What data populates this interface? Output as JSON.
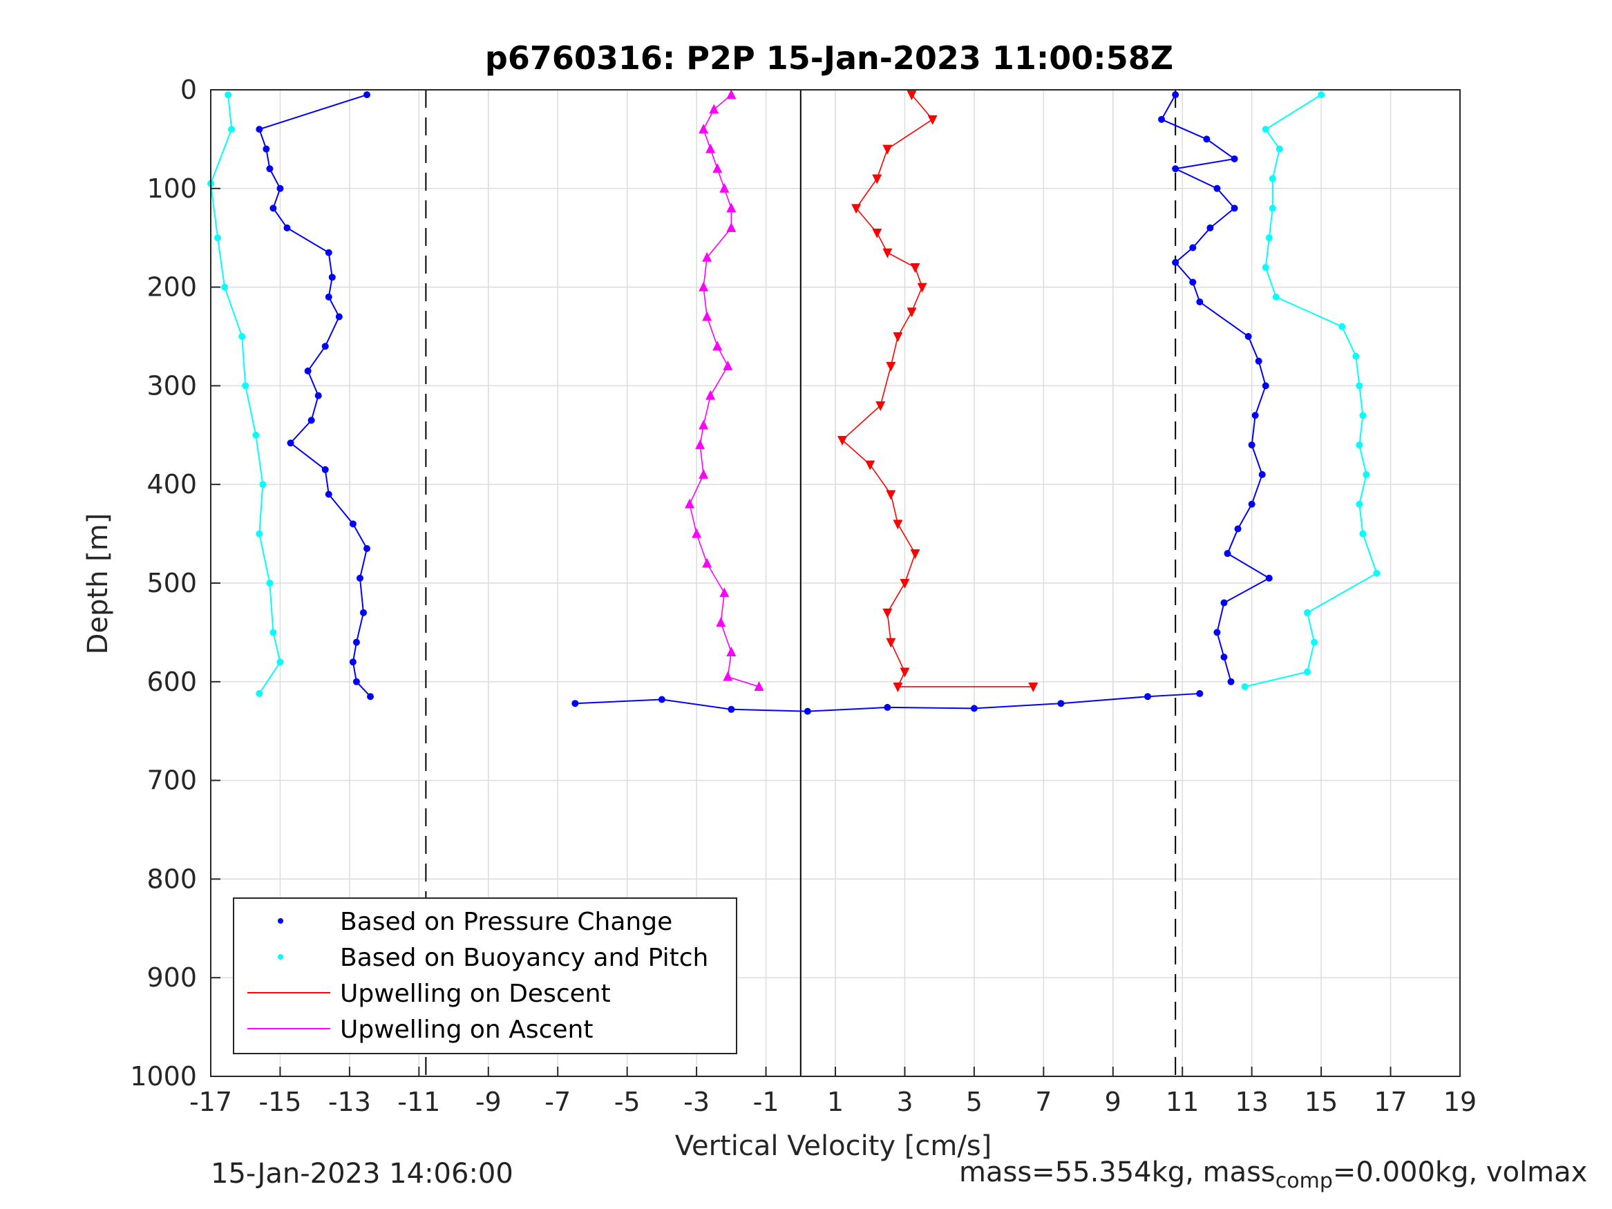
{
  "chart_data": {
    "type": "scatter",
    "title": "p6760316: P2P 15-Jan-2023 11:00:58Z",
    "xlabel": "Vertical Velocity [cm/s]",
    "ylabel": "Depth [m]",
    "xlim": [
      -17,
      19
    ],
    "ylim": [
      0,
      1000
    ],
    "y_reversed": true,
    "grid": true,
    "x_ticks": [
      -17,
      -15,
      -13,
      -11,
      -9,
      -7,
      -5,
      -3,
      -1,
      1,
      3,
      5,
      7,
      9,
      11,
      13,
      15,
      17,
      19
    ],
    "y_ticks": [
      0,
      100,
      200,
      300,
      400,
      500,
      600,
      700,
      800,
      900,
      1000
    ],
    "reference_lines": [
      {
        "x": -10.8,
        "style": "dashed"
      },
      {
        "x": 0,
        "style": "solid"
      },
      {
        "x": 10.8,
        "style": "dashed"
      }
    ],
    "legend_position": "bottom-left",
    "series": [
      {
        "name": "Based on Pressure Change",
        "color": "#0000ff",
        "marker": "dot",
        "branches": [
          {
            "points": [
              [
                -12.5,
                5
              ],
              [
                -15.6,
                40
              ],
              [
                -15.4,
                60
              ],
              [
                -15.3,
                80
              ],
              [
                -15.0,
                100
              ],
              [
                -15.2,
                120
              ],
              [
                -14.8,
                140
              ],
              [
                -13.6,
                165
              ],
              [
                -13.5,
                190
              ],
              [
                -13.6,
                210
              ],
              [
                -13.3,
                230
              ],
              [
                -13.7,
                260
              ],
              [
                -14.2,
                285
              ],
              [
                -13.9,
                310
              ],
              [
                -14.1,
                335
              ],
              [
                -14.7,
                358
              ],
              [
                -13.7,
                385
              ],
              [
                -13.6,
                410
              ],
              [
                -12.9,
                440
              ],
              [
                -12.5,
                465
              ],
              [
                -12.7,
                495
              ],
              [
                -12.6,
                530
              ],
              [
                -12.8,
                560
              ],
              [
                -12.9,
                580
              ],
              [
                -12.8,
                600
              ],
              [
                -12.4,
                615
              ]
            ]
          },
          {
            "points": [
              [
                10.8,
                5
              ],
              [
                10.4,
                30
              ],
              [
                11.7,
                50
              ],
              [
                12.5,
                70
              ],
              [
                10.8,
                80
              ],
              [
                12.0,
                100
              ],
              [
                12.5,
                120
              ],
              [
                11.8,
                140
              ],
              [
                11.3,
                160
              ],
              [
                10.8,
                175
              ],
              [
                11.3,
                195
              ],
              [
                11.5,
                215
              ],
              [
                12.9,
                250
              ],
              [
                13.2,
                275
              ],
              [
                13.4,
                300
              ],
              [
                13.1,
                330
              ],
              [
                13.0,
                360
              ],
              [
                13.3,
                390
              ],
              [
                13.0,
                420
              ],
              [
                12.6,
                445
              ],
              [
                12.3,
                470
              ],
              [
                13.5,
                495
              ],
              [
                12.2,
                520
              ],
              [
                12.0,
                550
              ],
              [
                12.2,
                575
              ],
              [
                12.4,
                600
              ]
            ]
          },
          {
            "points": [
              [
                -6.5,
                622
              ],
              [
                -4.0,
                618
              ],
              [
                -2.0,
                628
              ],
              [
                0.2,
                630
              ],
              [
                2.5,
                626
              ],
              [
                5.0,
                627
              ],
              [
                7.5,
                622
              ],
              [
                10.0,
                615
              ],
              [
                11.5,
                612
              ]
            ]
          }
        ]
      },
      {
        "name": "Based on Buoyancy and Pitch",
        "color": "#00ffff",
        "marker": "dot",
        "branches": [
          {
            "points": [
              [
                -16.5,
                5
              ],
              [
                -16.4,
                40
              ],
              [
                -17.0,
                95
              ],
              [
                -16.8,
                150
              ],
              [
                -16.6,
                200
              ],
              [
                -16.1,
                250
              ],
              [
                -16.0,
                300
              ],
              [
                -15.7,
                350
              ],
              [
                -15.5,
                400
              ],
              [
                -15.6,
                450
              ],
              [
                -15.3,
                500
              ],
              [
                -15.2,
                550
              ],
              [
                -15.0,
                580
              ],
              [
                -15.6,
                612
              ]
            ]
          },
          {
            "points": [
              [
                15.0,
                5
              ],
              [
                13.4,
                40
              ],
              [
                13.8,
                60
              ],
              [
                13.6,
                90
              ],
              [
                13.6,
                120
              ],
              [
                13.5,
                150
              ],
              [
                13.4,
                180
              ],
              [
                13.7,
                210
              ],
              [
                15.6,
                240
              ],
              [
                16.0,
                270
              ],
              [
                16.1,
                300
              ],
              [
                16.2,
                330
              ],
              [
                16.1,
                360
              ],
              [
                16.3,
                390
              ],
              [
                16.1,
                420
              ],
              [
                16.2,
                450
              ],
              [
                16.6,
                490
              ],
              [
                14.6,
                530
              ],
              [
                14.8,
                560
              ],
              [
                14.6,
                590
              ],
              [
                12.8,
                605
              ]
            ]
          }
        ]
      },
      {
        "name": "Upwelling on Descent",
        "color": "#ff0000",
        "marker": "triangle-down",
        "branches": [
          {
            "points": [
              [
                3.2,
                5
              ],
              [
                3.8,
                30
              ],
              [
                2.5,
                60
              ],
              [
                2.2,
                90
              ],
              [
                1.6,
                120
              ],
              [
                2.2,
                145
              ],
              [
                2.5,
                165
              ],
              [
                3.3,
                180
              ],
              [
                3.5,
                200
              ],
              [
                3.2,
                225
              ],
              [
                2.8,
                250
              ],
              [
                2.6,
                280
              ],
              [
                2.3,
                320
              ],
              [
                1.2,
                355
              ],
              [
                2.0,
                380
              ],
              [
                2.6,
                410
              ],
              [
                2.8,
                440
              ],
              [
                3.3,
                470
              ],
              [
                3.0,
                500
              ],
              [
                2.5,
                530
              ],
              [
                2.6,
                560
              ],
              [
                3.0,
                590
              ],
              [
                2.8,
                605
              ],
              [
                6.7,
                605
              ]
            ]
          }
        ]
      },
      {
        "name": "Upwelling on Ascent",
        "color": "#ff00ff",
        "marker": "triangle-up",
        "branches": [
          {
            "points": [
              [
                -2.0,
                5
              ],
              [
                -2.5,
                20
              ],
              [
                -2.8,
                40
              ],
              [
                -2.6,
                60
              ],
              [
                -2.4,
                80
              ],
              [
                -2.2,
                100
              ],
              [
                -2.0,
                120
              ],
              [
                -2.0,
                140
              ],
              [
                -2.7,
                170
              ],
              [
                -2.8,
                200
              ],
              [
                -2.7,
                230
              ],
              [
                -2.4,
                260
              ],
              [
                -2.1,
                280
              ],
              [
                -2.6,
                310
              ],
              [
                -2.8,
                340
              ],
              [
                -2.9,
                360
              ],
              [
                -2.8,
                390
              ],
              [
                -3.2,
                420
              ],
              [
                -3.0,
                450
              ],
              [
                -2.7,
                480
              ],
              [
                -2.2,
                510
              ],
              [
                -2.3,
                540
              ],
              [
                -2.0,
                570
              ],
              [
                -2.1,
                595
              ],
              [
                -1.2,
                605
              ]
            ]
          }
        ]
      }
    ],
    "footer_left": "15-Jan-2023 14:06:00",
    "footer_right_prefix": "mass=55.354kg, mass",
    "footer_right_sub": "comp",
    "footer_right_suffix": "=0.000kg, volmax"
  },
  "style": {
    "axis_color": "#262626",
    "grid_color": "#dcdcdc"
  }
}
